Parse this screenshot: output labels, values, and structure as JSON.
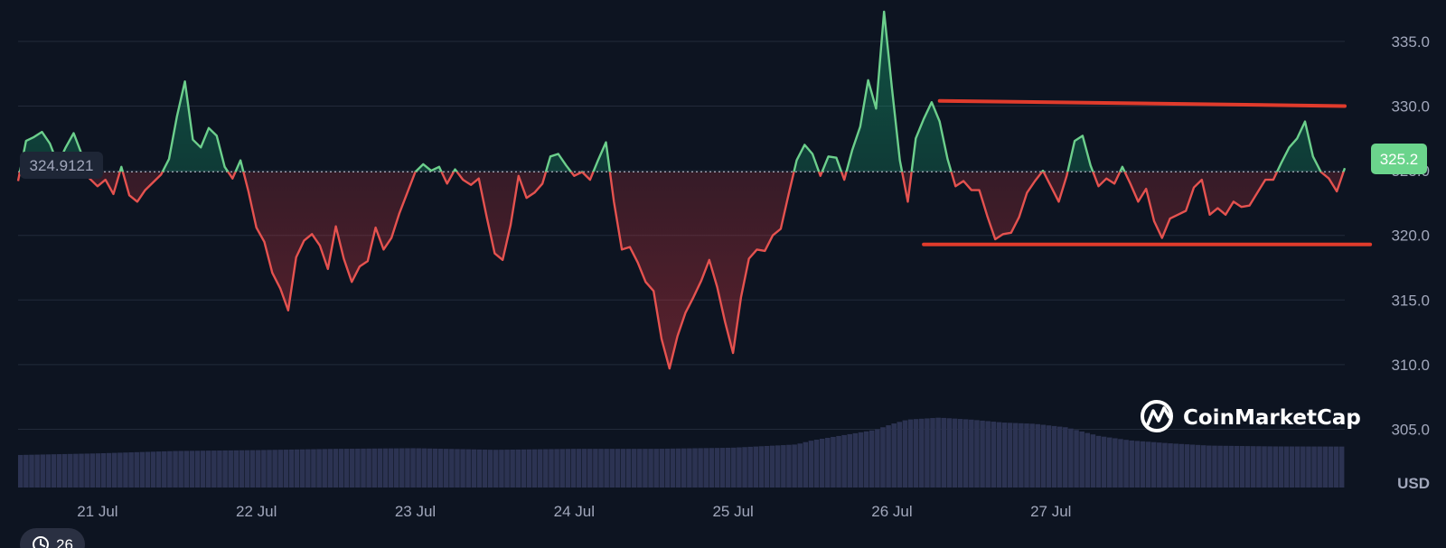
{
  "colors": {
    "background": "#0d1421",
    "grid": "#222a3a",
    "up": "#16c784",
    "up_line": "#6ccf8c",
    "down": "#ea3943",
    "down_line": "#e5524f",
    "volume": "#2c3352",
    "annotation": "#e03b2c",
    "badge_green": "#6bd48c",
    "label": "#a1a7bb"
  },
  "chart_data": {
    "type": "line",
    "currency_label": "USD",
    "ylim": [
      300.5,
      338.2
    ],
    "yticks": [
      305.0,
      310.0,
      315.0,
      320.0,
      325.0,
      330.0,
      335.0
    ],
    "ytick_labels": [
      "305.0",
      "310.0",
      "315.0",
      "320.0",
      "325.0",
      "330.0",
      "335.0"
    ],
    "xticks": [
      "21 Jul",
      "22 Jul",
      "23 Jul",
      "24 Jul",
      "25 Jul",
      "26 Jul",
      "27 Jul"
    ],
    "baseline": {
      "value": 324.9121,
      "label": "324.9121"
    },
    "current_price": {
      "value": 325.2,
      "label": "325.2"
    },
    "price_series": [
      [
        20.5,
        324.2
      ],
      [
        20.55,
        327.3
      ],
      [
        20.6,
        327.6
      ],
      [
        20.65,
        328.0
      ],
      [
        20.7,
        327.1
      ],
      [
        20.75,
        325.5
      ],
      [
        20.8,
        326.8
      ],
      [
        20.85,
        327.9
      ],
      [
        20.9,
        326.3
      ],
      [
        20.95,
        324.4
      ],
      [
        21.0,
        323.8
      ],
      [
        21.05,
        324.3
      ],
      [
        21.1,
        323.2
      ],
      [
        21.15,
        325.3
      ],
      [
        21.2,
        323.1
      ],
      [
        21.25,
        322.6
      ],
      [
        21.3,
        323.5
      ],
      [
        21.35,
        324.1
      ],
      [
        21.4,
        324.7
      ],
      [
        21.45,
        325.9
      ],
      [
        21.5,
        329.2
      ],
      [
        21.55,
        331.9
      ],
      [
        21.6,
        327.4
      ],
      [
        21.65,
        326.8
      ],
      [
        21.7,
        328.3
      ],
      [
        21.75,
        327.7
      ],
      [
        21.8,
        325.3
      ],
      [
        21.85,
        324.4
      ],
      [
        21.9,
        325.8
      ],
      [
        21.95,
        323.4
      ],
      [
        22.0,
        320.6
      ],
      [
        22.05,
        319.5
      ],
      [
        22.1,
        317.1
      ],
      [
        22.15,
        315.9
      ],
      [
        22.2,
        314.2
      ],
      [
        22.25,
        318.3
      ],
      [
        22.3,
        319.6
      ],
      [
        22.35,
        320.1
      ],
      [
        22.4,
        319.2
      ],
      [
        22.45,
        317.4
      ],
      [
        22.5,
        320.7
      ],
      [
        22.55,
        318.2
      ],
      [
        22.6,
        316.4
      ],
      [
        22.65,
        317.6
      ],
      [
        22.7,
        318.0
      ],
      [
        22.75,
        320.6
      ],
      [
        22.8,
        318.9
      ],
      [
        22.85,
        319.8
      ],
      [
        22.9,
        321.7
      ],
      [
        22.95,
        323.3
      ],
      [
        23.0,
        324.9
      ],
      [
        23.05,
        325.5
      ],
      [
        23.1,
        325.0
      ],
      [
        23.15,
        325.3
      ],
      [
        23.2,
        324.0
      ],
      [
        23.25,
        325.1
      ],
      [
        23.3,
        324.3
      ],
      [
        23.35,
        323.9
      ],
      [
        23.4,
        324.4
      ],
      [
        23.45,
        321.4
      ],
      [
        23.5,
        318.6
      ],
      [
        23.55,
        318.1
      ],
      [
        23.6,
        320.8
      ],
      [
        23.65,
        324.6
      ],
      [
        23.7,
        322.9
      ],
      [
        23.75,
        323.3
      ],
      [
        23.8,
        324.0
      ],
      [
        23.85,
        326.1
      ],
      [
        23.9,
        326.3
      ],
      [
        23.95,
        325.4
      ],
      [
        24.0,
        324.6
      ],
      [
        24.05,
        324.9
      ],
      [
        24.1,
        324.3
      ],
      [
        24.15,
        325.8
      ],
      [
        24.2,
        327.2
      ],
      [
        24.25,
        322.6
      ],
      [
        24.3,
        318.9
      ],
      [
        24.35,
        319.1
      ],
      [
        24.4,
        317.9
      ],
      [
        24.45,
        316.4
      ],
      [
        24.5,
        315.7
      ],
      [
        24.55,
        312.0
      ],
      [
        24.6,
        309.7
      ],
      [
        24.65,
        312.2
      ],
      [
        24.7,
        314.0
      ],
      [
        24.75,
        315.2
      ],
      [
        24.8,
        316.5
      ],
      [
        24.85,
        318.1
      ],
      [
        24.9,
        316.0
      ],
      [
        24.95,
        313.3
      ],
      [
        25.0,
        310.9
      ],
      [
        25.05,
        315.2
      ],
      [
        25.1,
        318.2
      ],
      [
        25.15,
        318.9
      ],
      [
        25.2,
        318.8
      ],
      [
        25.25,
        320.0
      ],
      [
        25.3,
        320.5
      ],
      [
        25.35,
        323.2
      ],
      [
        25.4,
        325.8
      ],
      [
        25.45,
        327.0
      ],
      [
        25.5,
        326.3
      ],
      [
        25.55,
        324.6
      ],
      [
        25.6,
        326.1
      ],
      [
        25.65,
        326.0
      ],
      [
        25.7,
        324.3
      ],
      [
        25.75,
        326.6
      ],
      [
        25.8,
        328.4
      ],
      [
        25.85,
        332.0
      ],
      [
        25.9,
        329.8
      ],
      [
        25.95,
        337.3
      ],
      [
        26.0,
        331.4
      ],
      [
        26.05,
        325.8
      ],
      [
        26.1,
        322.6
      ],
      [
        26.15,
        327.5
      ],
      [
        26.2,
        329.0
      ],
      [
        26.25,
        330.3
      ],
      [
        26.3,
        328.8
      ],
      [
        26.35,
        325.9
      ],
      [
        26.4,
        323.8
      ],
      [
        26.45,
        324.2
      ],
      [
        26.5,
        323.5
      ],
      [
        26.55,
        323.5
      ],
      [
        26.6,
        321.5
      ],
      [
        26.65,
        319.7
      ],
      [
        26.7,
        320.1
      ],
      [
        26.75,
        320.2
      ],
      [
        26.8,
        321.4
      ],
      [
        26.85,
        323.3
      ],
      [
        26.9,
        324.2
      ],
      [
        26.95,
        325.0
      ],
      [
        27.0,
        323.8
      ],
      [
        27.05,
        322.6
      ],
      [
        27.1,
        324.6
      ],
      [
        27.15,
        327.3
      ],
      [
        27.2,
        327.7
      ],
      [
        27.25,
        325.4
      ],
      [
        27.3,
        323.8
      ],
      [
        27.35,
        324.4
      ],
      [
        27.4,
        324.0
      ],
      [
        27.45,
        325.3
      ],
      [
        27.5,
        324.0
      ],
      [
        27.55,
        322.6
      ],
      [
        27.6,
        323.6
      ],
      [
        27.65,
        321.1
      ],
      [
        27.7,
        319.8
      ],
      [
        27.75,
        321.3
      ],
      [
        27.8,
        321.6
      ],
      [
        27.85,
        321.9
      ],
      [
        27.9,
        323.7
      ],
      [
        27.95,
        324.3
      ],
      [
        28.0,
        321.6
      ],
      [
        28.05,
        322.1
      ],
      [
        28.1,
        321.6
      ],
      [
        28.15,
        322.6
      ],
      [
        28.2,
        322.2
      ],
      [
        28.25,
        322.3
      ],
      [
        28.3,
        323.3
      ],
      [
        28.35,
        324.3
      ],
      [
        28.4,
        324.3
      ],
      [
        28.45,
        325.6
      ],
      [
        28.5,
        326.8
      ],
      [
        28.55,
        327.5
      ],
      [
        28.6,
        328.8
      ],
      [
        28.65,
        326.1
      ],
      [
        28.7,
        324.9
      ],
      [
        28.75,
        324.4
      ],
      [
        28.8,
        323.4
      ],
      [
        28.85,
        325.2
      ]
    ],
    "volume_series": [
      [
        20.5,
        0.2
      ],
      [
        21.0,
        0.21
      ],
      [
        21.5,
        0.225
      ],
      [
        22.0,
        0.23
      ],
      [
        22.5,
        0.238
      ],
      [
        23.0,
        0.242
      ],
      [
        23.5,
        0.232
      ],
      [
        24.0,
        0.238
      ],
      [
        24.5,
        0.238
      ],
      [
        25.0,
        0.245
      ],
      [
        25.4,
        0.265
      ],
      [
        25.5,
        0.29
      ],
      [
        25.9,
        0.355
      ],
      [
        26.0,
        0.39
      ],
      [
        26.1,
        0.418
      ],
      [
        26.3,
        0.43
      ],
      [
        26.5,
        0.418
      ],
      [
        26.7,
        0.4
      ],
      [
        26.9,
        0.392
      ],
      [
        27.1,
        0.37
      ],
      [
        27.3,
        0.318
      ],
      [
        27.5,
        0.29
      ],
      [
        27.75,
        0.272
      ],
      [
        28.0,
        0.258
      ],
      [
        28.4,
        0.253
      ],
      [
        28.85,
        0.252
      ]
    ]
  },
  "annotations": {
    "upper_line": {
      "from": [
        26.3,
        330.4
      ],
      "to": [
        28.85,
        330.0
      ]
    },
    "lower_line": {
      "from": [
        26.2,
        319.3
      ],
      "to": [
        29.01,
        319.3
      ]
    }
  },
  "branding": {
    "logo": "coinmarketcap-logo",
    "name": "CoinMarketCap"
  },
  "history_badge": {
    "icon": "history-icon",
    "count": "26"
  }
}
